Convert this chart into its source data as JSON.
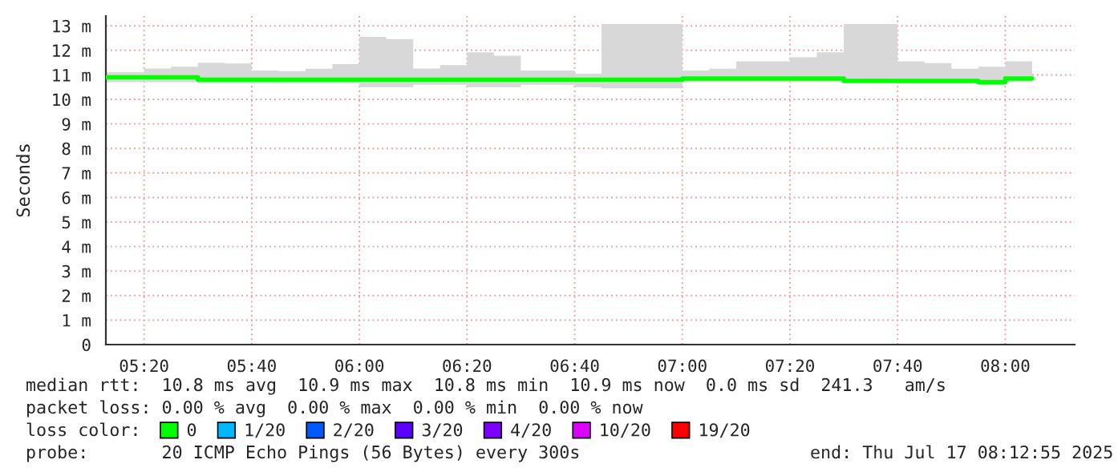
{
  "chart_data": {
    "type": "step",
    "ylabel": "Seconds",
    "x": [
      5.215,
      5.25,
      5.3333,
      5.4167,
      5.5,
      5.5833,
      5.6667,
      5.75,
      5.8333,
      5.9167,
      6.0,
      6.0833,
      6.1667,
      6.25,
      6.3333,
      6.4167,
      6.5,
      6.5833,
      6.6667,
      6.75,
      6.8333,
      6.9167,
      7.0,
      7.0833,
      7.1667,
      7.25,
      7.3333,
      7.4167,
      7.5,
      7.5833,
      7.6667,
      7.75,
      7.8333,
      7.9167,
      8.0,
      8.0833
    ],
    "series": [
      {
        "name": "0",
        "color": "#00ff00",
        "values": [
          10.9,
          10.9,
          10.9,
          10.9,
          10.8,
          10.8,
          10.8,
          10.8,
          10.8,
          10.8,
          10.8,
          10.8,
          10.8,
          10.8,
          10.8,
          10.8,
          10.8,
          10.8,
          10.8,
          10.8,
          10.8,
          10.8,
          10.85,
          10.85,
          10.85,
          10.85,
          10.85,
          10.85,
          10.75,
          10.75,
          10.75,
          10.75,
          10.75,
          10.7,
          10.85,
          10.85
        ],
        "lower": [
          10.7,
          10.7,
          10.7,
          10.7,
          10.65,
          10.65,
          10.65,
          10.65,
          10.65,
          10.65,
          10.5,
          10.5,
          10.6,
          10.6,
          10.5,
          10.5,
          10.6,
          10.6,
          10.5,
          10.45,
          10.45,
          10.45,
          10.7,
          10.7,
          10.7,
          10.7,
          10.7,
          10.7,
          10.7,
          10.7,
          10.65,
          10.65,
          10.65,
          10.65,
          10.7,
          10.7
        ],
        "upper": [
          11.1,
          11.1,
          11.26,
          11.33,
          11.5,
          11.46,
          11.18,
          11.15,
          11.25,
          11.44,
          12.55,
          12.46,
          11.26,
          11.4,
          11.92,
          11.78,
          11.18,
          11.18,
          11.05,
          13.07,
          13.07,
          13.07,
          11.18,
          11.25,
          11.55,
          11.55,
          11.72,
          11.92,
          13.07,
          13.07,
          11.55,
          11.48,
          11.25,
          11.33,
          11.55,
          11.55
        ]
      },
      {
        "name": "1/20",
        "color": "#00b8ff",
        "values": [
          null,
          null,
          null,
          null,
          null,
          null,
          null,
          null,
          null,
          null,
          null,
          null,
          null,
          null,
          null,
          null,
          null,
          null,
          null,
          null,
          null,
          null,
          null,
          null,
          null,
          null,
          null,
          null,
          null,
          null,
          null,
          null,
          null,
          null,
          null,
          null
        ]
      },
      {
        "name": "2/20",
        "color": "#0059ff",
        "values": [
          null,
          null,
          null,
          null,
          null,
          null,
          null,
          null,
          null,
          null,
          null,
          null,
          null,
          null,
          null,
          null,
          null,
          null,
          null,
          null,
          null,
          null,
          null,
          null,
          null,
          null,
          null,
          null,
          null,
          null,
          null,
          null,
          null,
          null,
          null,
          null
        ]
      },
      {
        "name": "3/20",
        "color": "#5e00ff",
        "values": [
          null,
          null,
          null,
          null,
          null,
          null,
          null,
          null,
          null,
          null,
          null,
          null,
          null,
          null,
          null,
          null,
          null,
          null,
          null,
          null,
          null,
          null,
          null,
          null,
          null,
          null,
          null,
          null,
          null,
          null,
          null,
          null,
          null,
          null,
          null,
          null
        ]
      },
      {
        "name": "4/20",
        "color": "#7e00ff",
        "values": [
          null,
          null,
          null,
          null,
          null,
          null,
          null,
          null,
          null,
          null,
          null,
          null,
          null,
          null,
          null,
          null,
          null,
          null,
          null,
          null,
          null,
          null,
          null,
          null,
          null,
          null,
          null,
          null,
          null,
          null,
          null,
          null,
          null,
          null,
          null,
          null
        ]
      },
      {
        "name": "10/20",
        "color": "#dd00ff",
        "values": [
          null,
          null,
          null,
          null,
          null,
          null,
          null,
          null,
          null,
          null,
          null,
          null,
          null,
          null,
          null,
          null,
          null,
          null,
          null,
          null,
          null,
          null,
          null,
          null,
          null,
          null,
          null,
          null,
          null,
          null,
          null,
          null,
          null,
          null,
          null,
          null
        ]
      },
      {
        "name": "19/20",
        "color": "#ff0000",
        "values": [
          null,
          null,
          null,
          null,
          null,
          null,
          null,
          null,
          null,
          null,
          null,
          null,
          null,
          null,
          null,
          null,
          null,
          null,
          null,
          null,
          null,
          null,
          null,
          null,
          null,
          null,
          null,
          null,
          null,
          null,
          null,
          null,
          null,
          null,
          null,
          null
        ]
      }
    ],
    "xlim": [
      5.215,
      8.215
    ],
    "xticks": [
      {
        "value": 5.3333,
        "label": "05:20"
      },
      {
        "value": 5.6667,
        "label": "05:40"
      },
      {
        "value": 6.0,
        "label": "06:00"
      },
      {
        "value": 6.3333,
        "label": "06:20"
      },
      {
        "value": 6.6667,
        "label": "06:40"
      },
      {
        "value": 7.0,
        "label": "07:00"
      },
      {
        "value": 7.3333,
        "label": "07:20"
      },
      {
        "value": 7.6667,
        "label": "07:40"
      },
      {
        "value": 8.0,
        "label": "08:00"
      }
    ],
    "ylim": [
      0,
      13.4
    ],
    "yticks": [
      0,
      {
        "value": 1,
        "label": "1 m"
      },
      {
        "value": 2,
        "label": "2 m"
      },
      {
        "value": 3,
        "label": "3 m"
      },
      {
        "value": 4,
        "label": "4 m"
      },
      {
        "value": 5,
        "label": "5 m"
      },
      {
        "value": 6,
        "label": "6 m"
      },
      {
        "value": 7,
        "label": "7 m"
      },
      {
        "value": 8,
        "label": "8 m"
      },
      {
        "value": 9,
        "label": "9 m"
      },
      {
        "value": 10,
        "label": "10 m"
      },
      {
        "value": 11,
        "label": "11 m"
      },
      {
        "value": 12,
        "label": "12 m"
      },
      {
        "value": 13,
        "label": "13 m"
      }
    ],
    "grid": true,
    "legend": "bottom",
    "legend_title": "loss color:",
    "annotations": [
      "median rtt:  10.8 ms avg  10.9 ms max  10.8 ms min  10.9 ms now  0.0 ms sd  241.3   am/s",
      "packet loss: 0.00 % avg  0.00 % max  0.00 % min  0.00 % now",
      "probe:       20 ICMP Echo Pings (56 Bytes) every 300s",
      "end: Thu Jul 17 08:12:55 2025"
    ]
  }
}
